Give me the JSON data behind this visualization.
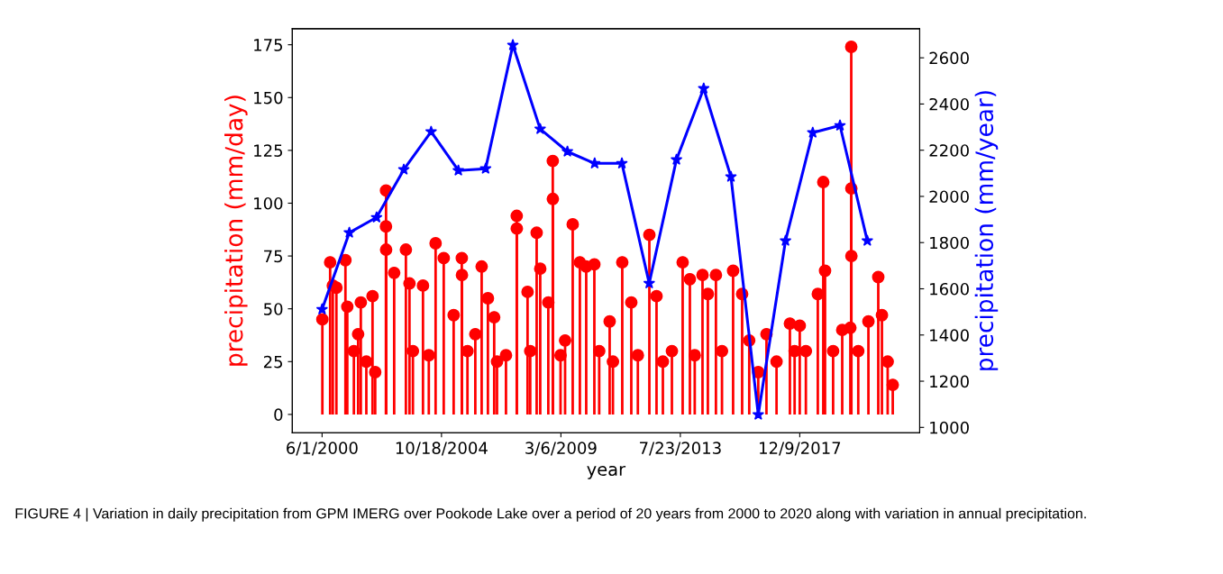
{
  "chart_data": {
    "type": "lollipop",
    "xlabel": "year",
    "ylabel": "precipitation (mm/day)",
    "y2label": "precipitation (mm/year)",
    "annotations": [
      "FIGURE 4 | Variation in daily precipitation from GPM IMERG over Pookode Lake over a period of 20 years from 2000 to 2020 along with variation in annual precipitation."
    ],
    "xlim": [
      "1999-04-29",
      "2022-05-04"
    ],
    "xticks": [
      {
        "value": "2000-06-01",
        "label": "6/1/2000"
      },
      {
        "value": "2004-10-18",
        "label": "10/18/2004"
      },
      {
        "value": "2009-03-06",
        "label": "3/6/2009"
      },
      {
        "value": "2013-07-23",
        "label": "7/23/2013"
      },
      {
        "value": "2017-12-09",
        "label": "12/9/2017"
      }
    ],
    "ylim": [
      -8.7,
      182.6
    ],
    "yticks": [
      0,
      25,
      50,
      75,
      100,
      125,
      150,
      175
    ],
    "y2lim": [
      976.6,
      2726
    ],
    "y2ticks": [
      1000,
      1200,
      1400,
      1600,
      1800,
      2000,
      2200,
      2400,
      2600
    ],
    "grid": false,
    "legend": false,
    "series": [
      {
        "color": "#ff0000",
        "marker": "circle",
        "x": [
          "2000-06-05",
          "2000-09-17",
          "2000-10-23",
          "2000-12-10",
          "2001-04-10",
          "2001-05-05",
          "2001-08-01",
          "2001-09-27",
          "2001-11-02",
          "2002-01-15",
          "2002-04-08",
          "2002-05-14",
          "2002-10-05",
          "2002-10-06",
          "2002-10-07",
          "2003-01-23",
          "2003-06-29",
          "2003-08-16",
          "2003-10-01",
          "2004-02-13",
          "2004-05-01",
          "2004-07-31",
          "2004-11-17",
          "2005-03-30",
          "2005-07-17",
          "2005-07-19",
          "2005-10-01",
          "2006-01-14",
          "2006-04-09",
          "2006-07-02",
          "2006-09-24",
          "2006-11-01",
          "2007-03-01",
          "2007-07-23",
          "2007-07-24",
          "2007-12-15",
          "2008-01-20",
          "2008-04-15",
          "2008-06-02",
          "2008-09-18",
          "2008-11-17",
          "2008-11-18",
          "2009-03-01",
          "2009-05-01",
          "2009-08-11",
          "2009-11-15",
          "2010-02-08",
          "2010-05-28",
          "2010-08-01",
          "2010-12-19",
          "2011-02-01",
          "2011-06-06",
          "2011-10-05",
          "2012-01-01",
          "2012-06-03",
          "2012-09-07",
          "2012-12-01",
          "2013-04-01",
          "2013-08-23",
          "2013-11-28",
          "2014-02-01",
          "2014-05-16",
          "2014-07-27",
          "2014-11-12",
          "2015-02-01",
          "2015-06-30",
          "2015-10-29",
          "2016-02-01",
          "2016-06-01",
          "2016-09-19",
          "2017-02-01",
          "2017-07-30",
          "2017-10-01",
          "2017-12-09",
          "2018-03-01",
          "2018-08-08",
          "2018-10-20",
          "2018-11-13",
          "2019-03-01",
          "2019-07-01",
          "2019-10-18",
          "2019-10-30",
          "2019-10-31",
          "2019-11-01",
          "2020-02-01",
          "2020-06-16",
          "2020-10-26",
          "2020-12-14",
          "2021-03-01",
          "2021-05-08"
        ],
        "values": [
          45,
          72,
          61,
          60,
          73,
          51,
          30,
          38,
          53,
          25,
          56,
          20,
          89,
          106,
          78,
          67,
          78,
          62,
          30,
          61,
          28,
          81,
          74,
          47,
          74,
          66,
          30,
          38,
          70,
          55,
          46,
          25,
          28,
          94,
          88,
          58,
          30,
          86,
          69,
          53,
          120,
          102,
          28,
          35,
          90,
          72,
          70,
          71,
          30,
          44,
          25,
          72,
          53,
          28,
          85,
          56,
          25,
          30,
          72,
          64,
          28,
          66,
          57,
          66,
          30,
          68,
          57,
          35,
          20,
          38,
          25,
          43,
          30,
          42,
          30,
          57,
          110,
          68,
          30,
          40,
          41,
          174,
          107,
          75,
          30,
          44,
          65,
          47,
          25,
          14
        ]
      },
      {
        "type": "line",
        "axis": "y2",
        "color": "#0000ff",
        "marker": "star",
        "line_style": "solid",
        "x": [
          "2000-06-01",
          "2001-06-01",
          "2002-06-01",
          "2003-06-01",
          "2004-06-01",
          "2005-06-01",
          "2006-06-01",
          "2007-06-01",
          "2008-06-01",
          "2009-06-01",
          "2010-06-01",
          "2011-06-01",
          "2012-06-01",
          "2013-06-01",
          "2014-06-01",
          "2015-06-01",
          "2016-06-01",
          "2017-06-01",
          "2018-06-01",
          "2019-06-01",
          "2020-06-01"
        ],
        "values": [
          1511,
          1843,
          1909,
          2116,
          2280,
          2112,
          2120,
          2655,
          2292,
          2194,
          2143,
          2143,
          1624,
          2159,
          2467,
          2085,
          1055,
          1808,
          2276,
          2307,
          1808
        ]
      }
    ]
  }
}
